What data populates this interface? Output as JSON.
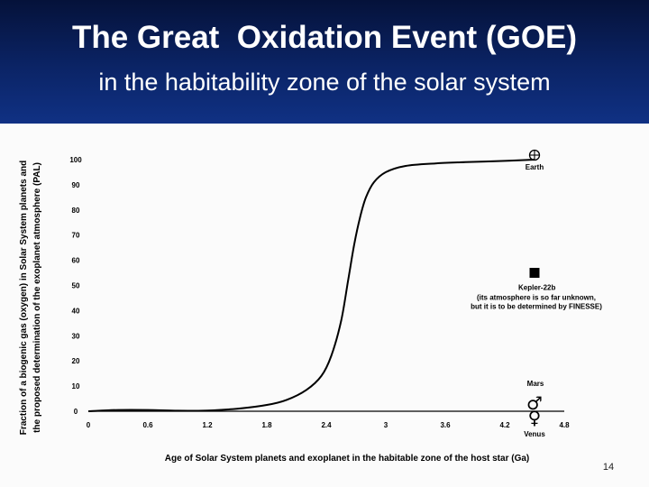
{
  "slide": {
    "title": "The Great  Oxidation Event (GOE)",
    "subtitle": "in the habitability zone of the solar system",
    "page_number": "14"
  },
  "colors": {
    "header_top": "#05123a",
    "header_bottom": "#103184",
    "title_text": "#ffffff",
    "ink": "#000000"
  },
  "chart_data": {
    "type": "line",
    "title": "",
    "xlabel": "Age of Solar System planets and exoplanet in the habitable zone of the host star (Ga)",
    "ylabel_line1": "Fraction of a biogenic gas (oxygen) in Solar System planets and",
    "ylabel_line2": "the proposed determination of the exoplanet atmosphere (PAL)",
    "xlim": [
      0,
      4.8
    ],
    "ylim": [
      0,
      100
    ],
    "xticks": [
      "0",
      "0.6",
      "1.2",
      "1.8",
      "2.4",
      "3",
      "3.6",
      "4.2",
      "4.8"
    ],
    "yticks": [
      "0",
      "10",
      "20",
      "30",
      "40",
      "50",
      "60",
      "70",
      "80",
      "90",
      "100"
    ],
    "series": [
      {
        "x": [
          0,
          0.3,
          0.6,
          0.9,
          1.2,
          1.5,
          1.8,
          2.0,
          2.2,
          2.35,
          2.45,
          2.55,
          2.62,
          2.68,
          2.74,
          2.8,
          2.88,
          3.0,
          3.2,
          3.5,
          3.8,
          4.2,
          4.5
        ],
        "y": [
          0,
          0.5,
          0.5,
          0.2,
          0.3,
          1,
          2.5,
          4.5,
          8.5,
          14,
          22,
          36,
          52,
          66,
          77,
          85,
          91,
          95,
          97.5,
          98.5,
          99,
          99.5,
          100
        ]
      }
    ],
    "annotations": [
      {
        "label": "Earth",
        "symbol": "⊕",
        "x": 4.5,
        "y": 100
      },
      {
        "label": "Kepler-22b",
        "note_line1": "(its atmosphere is so far unknown,",
        "note_line2": "but it is to be determined by FINESSE)",
        "symbol": "■",
        "x": 4.5,
        "y": 55
      },
      {
        "label": "Mars",
        "symbol": "♂",
        "x": 4.5,
        "y": 0
      },
      {
        "label": "Venus",
        "symbol": "♀",
        "x": 4.5,
        "y": 0
      }
    ],
    "grid": false
  }
}
